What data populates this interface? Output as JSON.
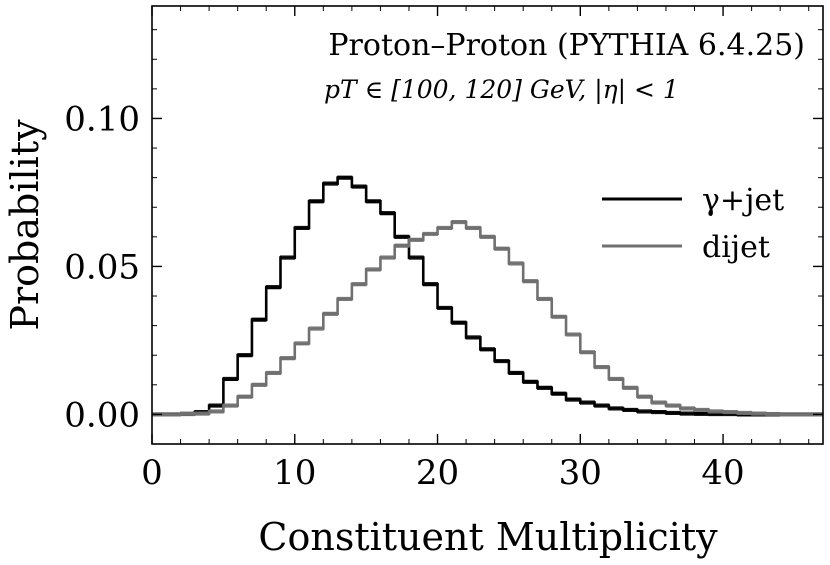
{
  "chart_data": {
    "type": "line",
    "title": "Proton–Proton (PYTHIA 6.4.25)",
    "subtitle": "pT ∈ [100, 120] GeV, |η| < 1",
    "xlabel": "Constituent Multiplicity",
    "ylabel": "Probability",
    "xlim": [
      0,
      47
    ],
    "ylim": [
      -0.01,
      0.138
    ],
    "x_ticks": [
      0,
      10,
      20,
      30,
      40
    ],
    "y_ticks": [
      0.0,
      0.05,
      0.1
    ],
    "x_tick_labels": [
      "0",
      "10",
      "20",
      "30",
      "40"
    ],
    "y_tick_labels": [
      "0.00",
      "0.05",
      "0.10"
    ],
    "grid": false,
    "legend_position": "right",
    "step_style": "histogram",
    "series": [
      {
        "name": "γ+jet",
        "color": "#000000",
        "bin_edges": [
          2,
          3,
          4,
          5,
          6,
          7,
          8,
          9,
          10,
          11,
          12,
          13,
          14,
          15,
          16,
          17,
          18,
          19,
          20,
          21,
          22,
          23,
          24,
          25,
          26,
          27,
          28,
          29,
          30,
          31,
          32,
          33,
          34,
          35,
          36,
          37,
          38,
          39,
          40,
          41,
          42,
          43,
          44,
          45,
          46,
          47
        ],
        "values": [
          0.0002,
          0.0008,
          0.003,
          0.012,
          0.02,
          0.032,
          0.043,
          0.053,
          0.063,
          0.072,
          0.078,
          0.08,
          0.077,
          0.072,
          0.068,
          0.06,
          0.053,
          0.044,
          0.036,
          0.031,
          0.026,
          0.022,
          0.018,
          0.014,
          0.011,
          0.009,
          0.007,
          0.005,
          0.004,
          0.003,
          0.002,
          0.0015,
          0.001,
          0.0008,
          0.0005,
          0.0003,
          0.0002,
          0.0001,
          0.0001,
          0.0,
          0.0,
          0.0,
          0.0,
          0.0,
          0.0
        ]
      },
      {
        "name": "dijet",
        "color": "#707070",
        "bin_edges": [
          2,
          3,
          4,
          5,
          6,
          7,
          8,
          9,
          10,
          11,
          12,
          13,
          14,
          15,
          16,
          17,
          18,
          19,
          20,
          21,
          22,
          23,
          24,
          25,
          26,
          27,
          28,
          29,
          30,
          31,
          32,
          33,
          34,
          35,
          36,
          37,
          38,
          39,
          40,
          41,
          42,
          43,
          44,
          45,
          46,
          47
        ],
        "values": [
          0.0001,
          0.0003,
          0.001,
          0.003,
          0.006,
          0.01,
          0.014,
          0.019,
          0.024,
          0.029,
          0.034,
          0.039,
          0.044,
          0.049,
          0.053,
          0.057,
          0.059,
          0.061,
          0.063,
          0.065,
          0.063,
          0.06,
          0.056,
          0.051,
          0.045,
          0.039,
          0.033,
          0.027,
          0.021,
          0.016,
          0.012,
          0.009,
          0.006,
          0.004,
          0.003,
          0.002,
          0.0015,
          0.001,
          0.0008,
          0.0005,
          0.0003,
          0.0001,
          0.0,
          0.0,
          0.0
        ]
      }
    ]
  }
}
